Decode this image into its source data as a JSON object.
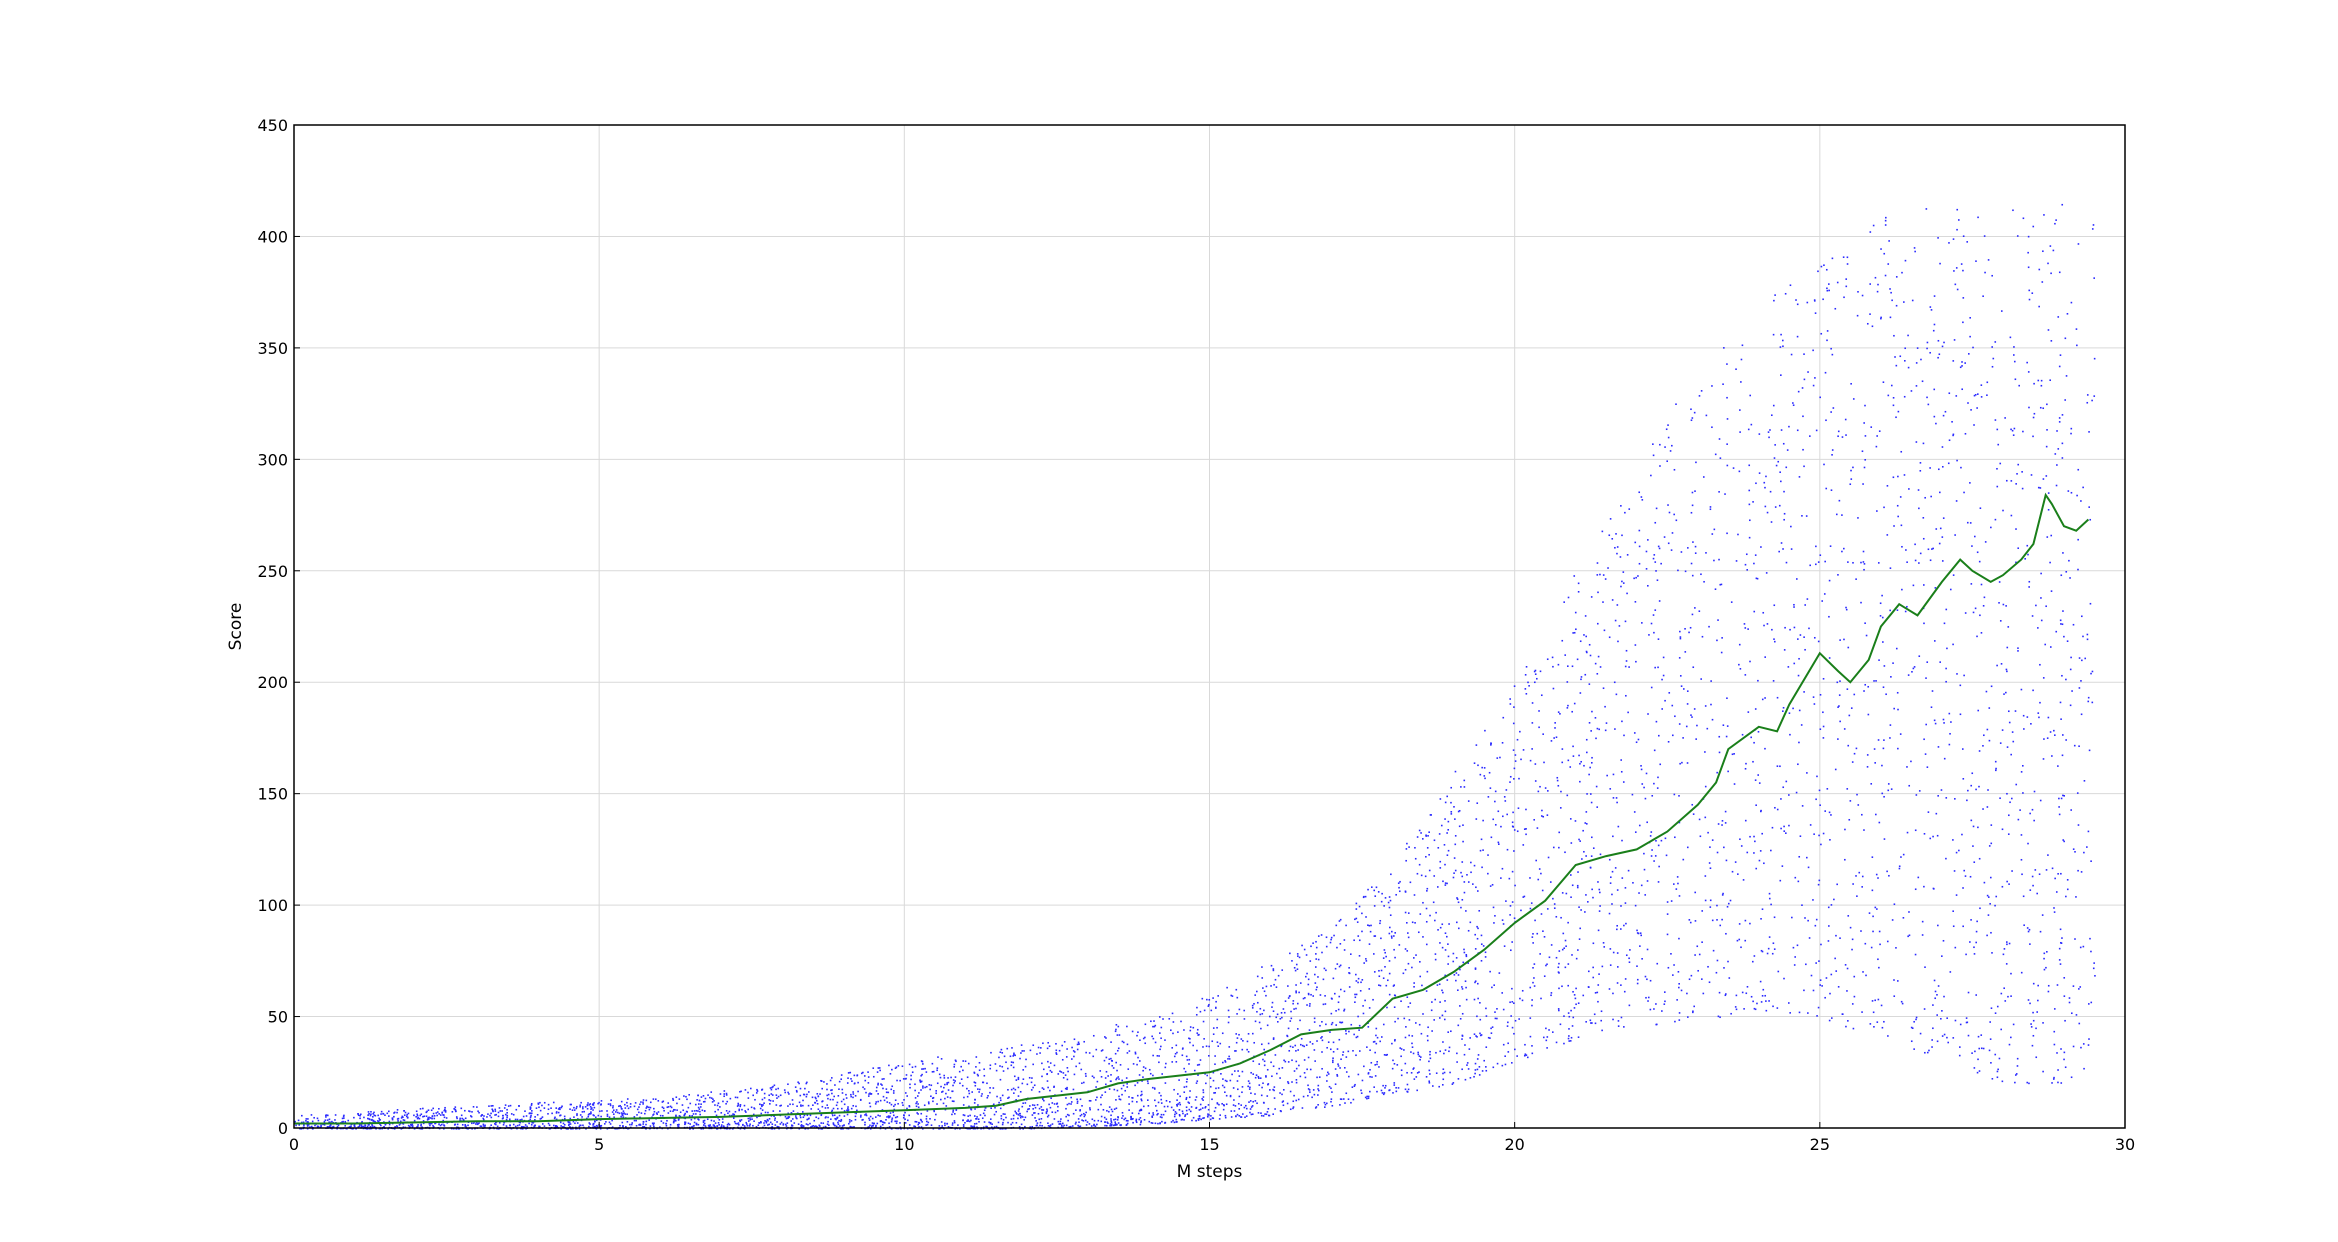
{
  "chart_data": {
    "type": "scatter",
    "xlabel": "M steps",
    "ylabel": "Score",
    "xlim": [
      0,
      30
    ],
    "ylim": [
      0,
      450
    ],
    "x_ticks": [
      "0",
      "5",
      "10",
      "15",
      "20",
      "25",
      "30"
    ],
    "y_ticks": [
      "0",
      "50",
      "100",
      "150",
      "200",
      "250",
      "300",
      "350",
      "400",
      "450"
    ],
    "grid": true,
    "colors": {
      "scatter": "#2a2aff",
      "trend": "#1a7f1a",
      "grid": "#d9d9d9"
    },
    "series": [
      {
        "kind": "scatter",
        "description_points": "episode scores; spread approximated by envelope",
        "envelope": [
          {
            "x": 0,
            "lo": 0,
            "hi": 6
          },
          {
            "x": 2,
            "lo": 0,
            "hi": 9
          },
          {
            "x": 4,
            "lo": 0,
            "hi": 12
          },
          {
            "x": 6,
            "lo": 0,
            "hi": 14
          },
          {
            "x": 8,
            "lo": 0,
            "hi": 20
          },
          {
            "x": 10,
            "lo": 0,
            "hi": 30
          },
          {
            "x": 12,
            "lo": 0,
            "hi": 38
          },
          {
            "x": 14,
            "lo": 2,
            "hi": 50
          },
          {
            "x": 15,
            "lo": 4,
            "hi": 60
          },
          {
            "x": 16,
            "lo": 6,
            "hi": 75
          },
          {
            "x": 17,
            "lo": 10,
            "hi": 90
          },
          {
            "x": 18,
            "lo": 15,
            "hi": 120
          },
          {
            "x": 19,
            "lo": 20,
            "hi": 160
          },
          {
            "x": 20,
            "lo": 30,
            "hi": 200
          },
          {
            "x": 21,
            "lo": 40,
            "hi": 250
          },
          {
            "x": 22,
            "lo": 45,
            "hi": 300
          },
          {
            "x": 23,
            "lo": 50,
            "hi": 340
          },
          {
            "x": 24,
            "lo": 50,
            "hi": 370
          },
          {
            "x": 25,
            "lo": 50,
            "hi": 390
          },
          {
            "x": 26,
            "lo": 40,
            "hi": 410
          },
          {
            "x": 27,
            "lo": 30,
            "hi": 415
          },
          {
            "x": 28,
            "lo": 20,
            "hi": 415
          },
          {
            "x": 29,
            "lo": 20,
            "hi": 415
          },
          {
            "x": 29.5,
            "lo": 30,
            "hi": 410
          }
        ]
      },
      {
        "kind": "line",
        "x": [
          0,
          1,
          2,
          3,
          4,
          5,
          6,
          7,
          8,
          9,
          10,
          11,
          11.5,
          12,
          13,
          13.5,
          14,
          15,
          15.5,
          16,
          16.5,
          17,
          17.5,
          18,
          18.5,
          19,
          19.5,
          20,
          20.5,
          21,
          21.5,
          22,
          22.5,
          23,
          23.3,
          23.5,
          24,
          24.3,
          24.5,
          25,
          25.3,
          25.5,
          25.8,
          26,
          26.3,
          26.6,
          27,
          27.3,
          27.5,
          27.8,
          28,
          28.3,
          28.5,
          28.7,
          28.8,
          29,
          29.2,
          29.4
        ],
        "y": [
          2,
          2,
          2.5,
          3,
          3,
          4,
          4.5,
          5,
          6,
          7,
          8,
          9,
          10,
          13,
          16,
          20,
          22,
          25,
          29,
          35,
          42,
          44,
          45,
          58,
          62,
          70,
          80,
          92,
          102,
          118,
          122,
          125,
          133,
          145,
          155,
          170,
          180,
          178,
          190,
          213,
          205,
          200,
          210,
          225,
          235,
          230,
          245,
          255,
          250,
          245,
          248,
          255,
          262,
          284,
          280,
          270,
          268,
          273
        ]
      }
    ]
  }
}
